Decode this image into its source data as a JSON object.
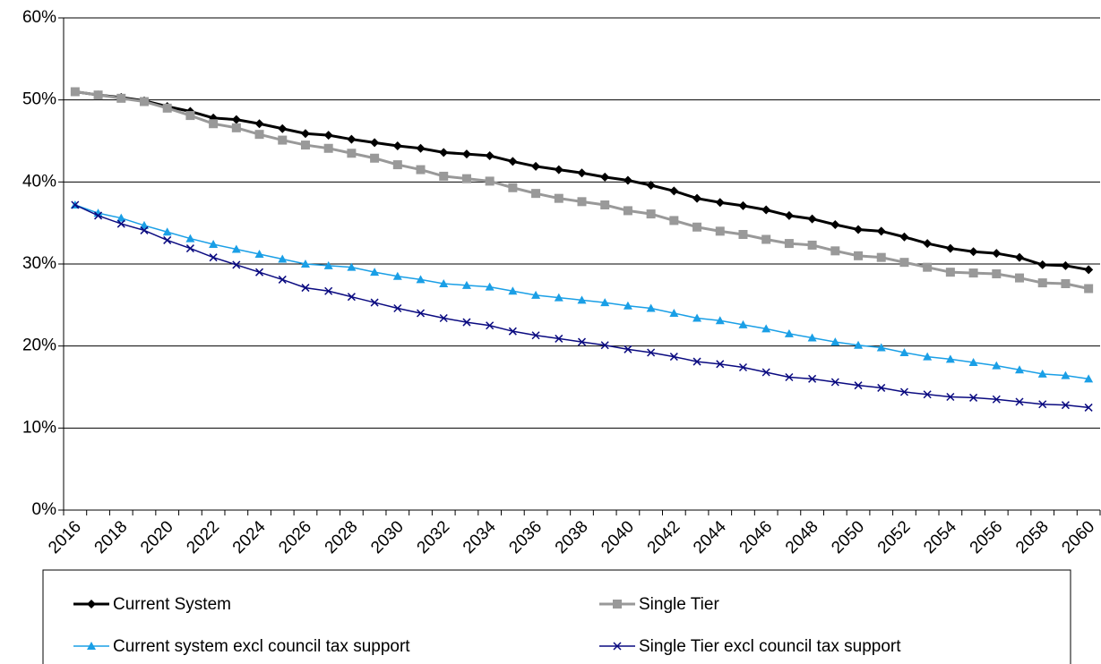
{
  "chart_data": {
    "type": "line",
    "categories": [
      "2016",
      null,
      "2018",
      null,
      "2020",
      null,
      "2022",
      null,
      "2024",
      null,
      "2026",
      null,
      "2028",
      null,
      "2030",
      null,
      "2032",
      null,
      "2034",
      null,
      "2036",
      null,
      "2038",
      null,
      "2040",
      null,
      "2042",
      null,
      "2044",
      null,
      "2046",
      null,
      "2048",
      null,
      "2050",
      null,
      "2052",
      null,
      "2054",
      null,
      "2056",
      null,
      "2058",
      null,
      "2060"
    ],
    "series": [
      {
        "name": "Current System",
        "color": "#000000",
        "marker": "diamond",
        "values": [
          51.0,
          50.6,
          50.3,
          49.9,
          49.2,
          48.6,
          47.8,
          47.6,
          47.1,
          46.5,
          45.9,
          45.7,
          45.2,
          44.8,
          44.4,
          44.1,
          43.6,
          43.4,
          43.2,
          42.5,
          41.9,
          41.5,
          41.1,
          40.6,
          40.2,
          39.6,
          38.9,
          38.0,
          37.5,
          37.1,
          36.6,
          35.9,
          35.5,
          34.8,
          34.2,
          34.0,
          33.3,
          32.5,
          31.9,
          31.5,
          31.3,
          30.8,
          29.9,
          29.8,
          29.3
        ]
      },
      {
        "name": "Single Tier",
        "color": "#999999",
        "marker": "square",
        "values": [
          51.0,
          50.6,
          50.2,
          49.8,
          49.0,
          48.1,
          47.1,
          46.6,
          45.8,
          45.1,
          44.5,
          44.1,
          43.5,
          42.9,
          42.1,
          41.5,
          40.7,
          40.4,
          40.1,
          39.3,
          38.6,
          38.0,
          37.6,
          37.2,
          36.5,
          36.1,
          35.3,
          34.5,
          34.0,
          33.6,
          33.0,
          32.5,
          32.3,
          31.6,
          31.0,
          30.8,
          30.2,
          29.6,
          29.0,
          28.9,
          28.8,
          28.3,
          27.7,
          27.6,
          27.0
        ]
      },
      {
        "name": "Current system excl council tax support",
        "color": "#1a9fe6",
        "marker": "triangle",
        "values": [
          37.2,
          36.2,
          35.6,
          34.7,
          33.9,
          33.1,
          32.4,
          31.8,
          31.2,
          30.6,
          30.0,
          29.8,
          29.6,
          29.0,
          28.5,
          28.1,
          27.6,
          27.4,
          27.2,
          26.7,
          26.2,
          25.9,
          25.6,
          25.3,
          24.9,
          24.6,
          24.0,
          23.4,
          23.1,
          22.6,
          22.1,
          21.5,
          21.0,
          20.5,
          20.1,
          19.8,
          19.2,
          18.7,
          18.4,
          18.0,
          17.6,
          17.1,
          16.6,
          16.4,
          16.0
        ]
      },
      {
        "name": "Single Tier excl council tax support",
        "color": "#0a0a80",
        "marker": "x",
        "values": [
          37.2,
          35.9,
          34.9,
          34.1,
          32.9,
          31.9,
          30.8,
          29.9,
          29.0,
          28.1,
          27.1,
          26.7,
          26.0,
          25.3,
          24.6,
          24.0,
          23.4,
          22.9,
          22.5,
          21.8,
          21.3,
          20.9,
          20.5,
          20.1,
          19.6,
          19.2,
          18.7,
          18.1,
          17.8,
          17.4,
          16.8,
          16.2,
          16.0,
          15.6,
          15.2,
          14.9,
          14.4,
          14.1,
          13.8,
          13.7,
          13.5,
          13.2,
          12.9,
          12.8,
          12.5
        ]
      }
    ],
    "ylim": [
      0,
      60
    ],
    "yticks": [
      {
        "value": 0,
        "label": "0%"
      },
      {
        "value": 10,
        "label": "10%"
      },
      {
        "value": 20,
        "label": "20%"
      },
      {
        "value": 30,
        "label": "30%"
      },
      {
        "value": 40,
        "label": "40%"
      },
      {
        "value": 50,
        "label": "50%"
      },
      {
        "value": 60,
        "label": "60%"
      }
    ],
    "grid": true,
    "legend": "bottom"
  }
}
